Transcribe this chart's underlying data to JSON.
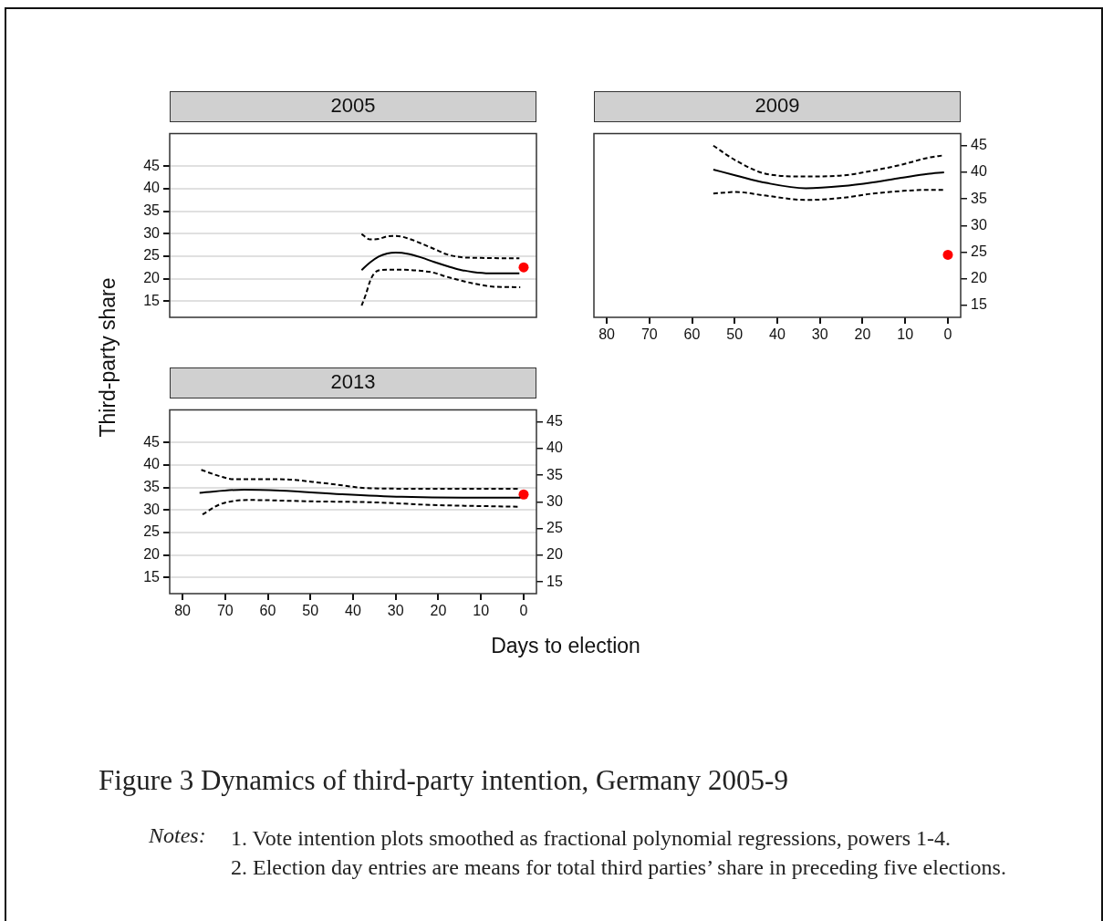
{
  "chart_data": [
    {
      "type": "line",
      "title": "2005",
      "ylabel": "Third-party share",
      "xlim": [
        83,
        -3
      ],
      "ylim": [
        11.4,
        52.2
      ],
      "yticks": [
        15,
        20,
        25,
        30,
        35,
        40,
        45
      ],
      "grid": "y",
      "tick_labels": "y",
      "series": [
        {
          "type": "line",
          "color": "#000000",
          "line_style": "solid",
          "marker": "none",
          "x": [
            38,
            36,
            34,
            32,
            30,
            27,
            24,
            21,
            18,
            15,
            12,
            8,
            1
          ],
          "values": [
            21.9,
            23.6,
            24.9,
            25.6,
            25.8,
            25.5,
            24.7,
            23.7,
            22.8,
            22.0,
            21.5,
            21.2,
            21.2
          ]
        },
        {
          "type": "line",
          "color": "#000000",
          "line_style": "dashed",
          "marker": "none",
          "x": [
            38,
            36,
            34,
            32,
            30,
            27,
            24,
            21,
            18,
            15,
            10,
            1
          ],
          "values": [
            29.9,
            28.7,
            28.8,
            29.4,
            29.5,
            28.9,
            27.8,
            26.6,
            25.4,
            24.8,
            24.6,
            24.5
          ]
        },
        {
          "type": "line",
          "color": "#000000",
          "line_style": "dashed",
          "marker": "none",
          "x": [
            38,
            37,
            36,
            35,
            33.5,
            30,
            25,
            21,
            18,
            14,
            10,
            7,
            0.8
          ],
          "values": [
            14.0,
            16.5,
            19.5,
            21.2,
            21.9,
            22.0,
            21.8,
            21.3,
            20.4,
            19.4,
            18.6,
            18.2,
            18.1
          ]
        },
        {
          "type": "scatter",
          "color": "#ff0000",
          "marker": "circle",
          "x": [
            0
          ],
          "values": [
            22.5
          ]
        }
      ]
    },
    {
      "type": "line",
      "title": "2009",
      "xlim": [
        83,
        -3
      ],
      "xticks": [
        80,
        70,
        60,
        50,
        40,
        30,
        20,
        10,
        0
      ],
      "y2lim": [
        12.75,
        47.25
      ],
      "y2ticks": [
        15,
        20,
        25,
        30,
        35,
        40,
        45
      ],
      "tick_labels": [
        "x",
        "y2"
      ],
      "series": [
        {
          "type": "line",
          "color": "#000000",
          "line_style": "solid",
          "marker": "none",
          "axis": "y2",
          "x": [
            55,
            49.7,
            42.6,
            33.3,
            24.7,
            17.6,
            10.5,
            4.8,
            0.9
          ],
          "values": [
            40.5,
            39.4,
            38.0,
            37.0,
            37.4,
            38.1,
            39.0,
            39.7,
            40.0
          ]
        },
        {
          "type": "line",
          "color": "#000000",
          "line_style": "dashed",
          "marker": "none",
          "axis": "y2",
          "x": [
            55,
            49.7,
            42.6,
            33.3,
            24.7,
            17.6,
            10.5,
            4.8,
            0.9
          ],
          "values": [
            45.0,
            42.2,
            39.7,
            39.2,
            39.4,
            40.3,
            41.5,
            42.7,
            43.2
          ]
        },
        {
          "type": "line",
          "color": "#000000",
          "line_style": "dashed",
          "marker": "none",
          "axis": "y2",
          "x": [
            55,
            49.7,
            42.6,
            33.3,
            24.7,
            17.6,
            10.5,
            4.8,
            0.9
          ],
          "values": [
            36.0,
            36.3,
            35.6,
            34.8,
            35.2,
            36.0,
            36.5,
            36.7,
            36.7
          ]
        },
        {
          "type": "scatter",
          "color": "#ff0000",
          "marker": "circle",
          "axis": "y2",
          "x": [
            0
          ],
          "values": [
            24.5
          ]
        }
      ]
    },
    {
      "type": "line",
      "title": "2013",
      "xlabel": "Days to election",
      "xlim": [
        83,
        -3
      ],
      "xticks": [
        80,
        70,
        60,
        50,
        40,
        30,
        20,
        10,
        0
      ],
      "ylim": [
        11.4,
        52.2
      ],
      "yticks": [
        15,
        20,
        25,
        30,
        35,
        40,
        45
      ],
      "y2lim": [
        12.8,
        47.25
      ],
      "y2ticks": [
        15,
        20,
        25,
        30,
        35,
        40,
        45
      ],
      "grid": "y",
      "annotations": [
        "Figure 3   Dynamics of  third-party intention, Germany 2005-9",
        "Notes:",
        "1. Vote intention plots smoothed as fractional polynomial regressions, powers 1-4.",
        "2. Election day entries are means for total third parties’ share in preceding five elections."
      ],
      "series": [
        {
          "type": "line",
          "color": "#000000",
          "line_style": "solid",
          "marker": "none",
          "x": [
            76,
            65.6,
            57.1,
            42.8,
            28.6,
            14.3,
            0.8
          ],
          "values": [
            33.8,
            34.5,
            34.3,
            33.5,
            32.9,
            32.7,
            32.7
          ]
        },
        {
          "type": "line",
          "color": "#000000",
          "line_style": "dashed",
          "marker": "none",
          "x": [
            75.6,
            71.3,
            67.8,
            57.1,
            46.4,
            35.7,
            21.5,
            0.8
          ],
          "values": [
            38.9,
            37.5,
            36.8,
            36.8,
            35.9,
            34.8,
            34.7,
            34.7
          ]
        },
        {
          "type": "line",
          "color": "#000000",
          "line_style": "dashed",
          "marker": "none",
          "x": [
            75.3,
            71.3,
            67.8,
            64.2,
            50,
            35.7,
            21.5,
            1
          ],
          "values": [
            29.0,
            31.2,
            32.0,
            32.2,
            31.9,
            31.7,
            31.1,
            30.7
          ]
        },
        {
          "type": "scatter",
          "color": "#ff0000",
          "marker": "circle",
          "axis": "y2",
          "x": [
            0
          ],
          "values": [
            31.4
          ]
        }
      ]
    }
  ]
}
